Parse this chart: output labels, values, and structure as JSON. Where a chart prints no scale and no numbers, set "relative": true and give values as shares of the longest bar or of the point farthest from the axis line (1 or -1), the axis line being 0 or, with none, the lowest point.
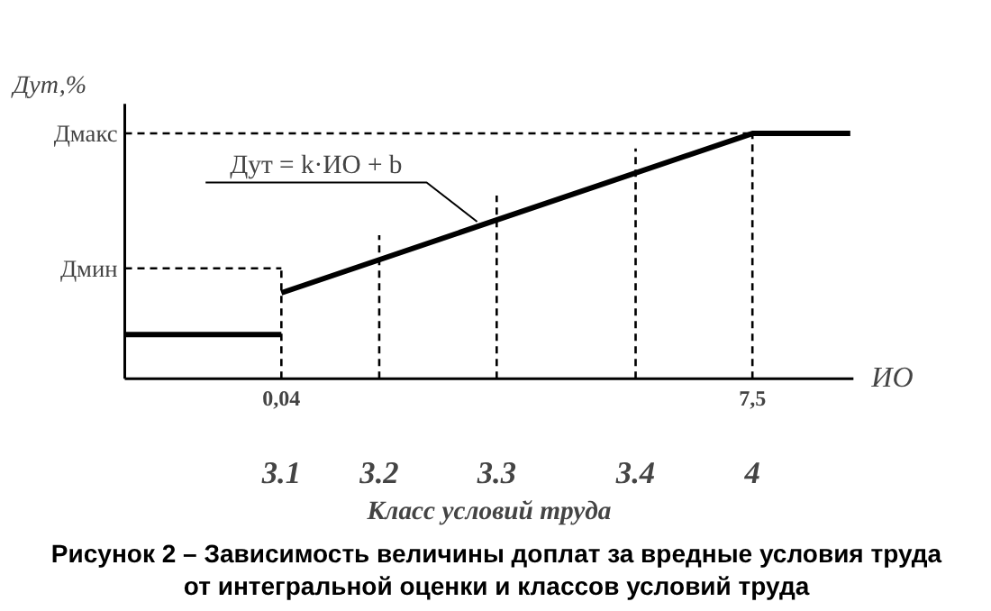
{
  "chart_data": {
    "type": "line",
    "title": "Рисунок 2 – Зависимость величины доплат за вредные условия труда от интегральной оценки и классов условий труда",
    "xlabel": "ИО",
    "ylabel": "Дут,%",
    "relative": true,
    "series": [
      {
        "color": "#000000",
        "x": [
          -2.44,
          0.04
        ],
        "values": [
          0.18,
          0.18
        ]
      },
      {
        "color": "#000000",
        "x": [
          0.04,
          7.5,
          9.05
        ],
        "values": [
          0.35,
          1,
          1
        ]
      }
    ],
    "xlim": [
      -2.44,
      9.1
    ],
    "xticks": [
      {
        "value": 0.04,
        "label": "0,04"
      },
      {
        "value": 7.5,
        "label": "7,5"
      }
    ],
    "ref_lines": [
      {
        "axis": "y",
        "value": 0.45,
        "label": "Дмин",
        "line_style": "dashed"
      },
      {
        "axis": "y",
        "value": 1,
        "label": "Дмакс",
        "line_style": "dashed"
      },
      {
        "axis": "x",
        "value": 0.04,
        "line_style": "dashed"
      },
      {
        "axis": "x",
        "value": 1.59,
        "line_style": "dashed"
      },
      {
        "axis": "x",
        "value": 3.45,
        "line_style": "dashed"
      },
      {
        "axis": "x",
        "value": 5.65,
        "line_style": "dashed"
      },
      {
        "axis": "x",
        "value": 7.5,
        "line_style": "dashed"
      }
    ],
    "annotations": [
      {
        "text": "Дут = k·ИО + b",
        "x": 3.14,
        "y": 0.64
      },
      "3.1",
      "3.2",
      "3.3",
      "3.4",
      "4",
      "Класс условий труда"
    ]
  }
}
